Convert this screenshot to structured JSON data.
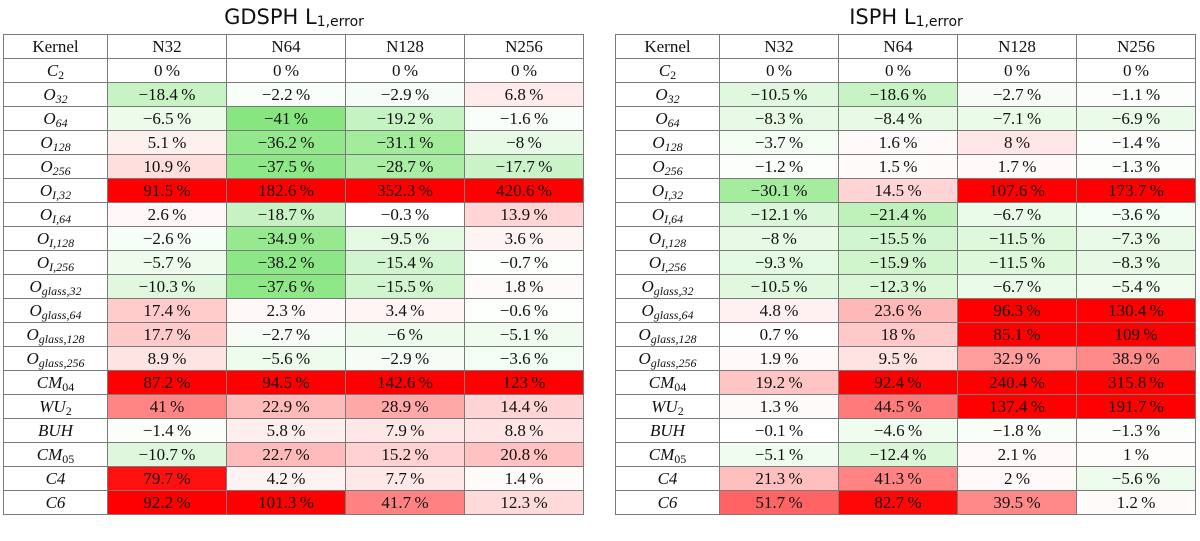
{
  "chart_data": [
    {
      "type": "table",
      "title": "GDSPH",
      "title_subscript": "1,error",
      "title_prefix": "L",
      "header": [
        "Kernel",
        "N32",
        "N64",
        "N128",
        "N256"
      ],
      "unit": "%",
      "rows": [
        {
          "kernel": {
            "b": "C",
            "s": "",
            "n": "2"
          },
          "values": [
            0,
            0,
            0,
            0
          ]
        },
        {
          "kernel": {
            "b": "O",
            "s": "32",
            "n": ""
          },
          "values": [
            -18.4,
            -2.2,
            -2.9,
            6.8
          ]
        },
        {
          "kernel": {
            "b": "O",
            "s": "64",
            "n": ""
          },
          "values": [
            -6.5,
            -41,
            -19.2,
            -1.6
          ]
        },
        {
          "kernel": {
            "b": "O",
            "s": "128",
            "n": ""
          },
          "values": [
            5.1,
            -36.2,
            -31.1,
            -8
          ]
        },
        {
          "kernel": {
            "b": "O",
            "s": "256",
            "n": ""
          },
          "values": [
            10.9,
            -37.5,
            -28.7,
            -17.7
          ]
        },
        {
          "kernel": {
            "b": "O",
            "s": "I,32",
            "n": ""
          },
          "values": [
            91.5,
            182.6,
            352.3,
            420.6
          ]
        },
        {
          "kernel": {
            "b": "O",
            "s": "I,64",
            "n": ""
          },
          "values": [
            2.6,
            -18.7,
            -0.3,
            13.9
          ]
        },
        {
          "kernel": {
            "b": "O",
            "s": "I,128",
            "n": ""
          },
          "values": [
            -2.6,
            -34.9,
            -9.5,
            3.6
          ]
        },
        {
          "kernel": {
            "b": "O",
            "s": "I,256",
            "n": ""
          },
          "values": [
            -5.7,
            -38.2,
            -15.4,
            -0.7
          ]
        },
        {
          "kernel": {
            "b": "O",
            "s": "glass,32",
            "n": ""
          },
          "values": [
            -10.3,
            -37.6,
            -15.5,
            1.8
          ]
        },
        {
          "kernel": {
            "b": "O",
            "s": "glass,64",
            "n": ""
          },
          "values": [
            17.4,
            2.3,
            3.4,
            -0.6
          ]
        },
        {
          "kernel": {
            "b": "O",
            "s": "glass,128",
            "n": ""
          },
          "values": [
            17.7,
            -2.7,
            -6,
            -5.1
          ]
        },
        {
          "kernel": {
            "b": "O",
            "s": "glass,256",
            "n": ""
          },
          "values": [
            8.9,
            -5.6,
            -2.9,
            -3.6
          ]
        },
        {
          "kernel": {
            "b": "CM",
            "s": "",
            "n": "04"
          },
          "values": [
            87.2,
            94.5,
            142.6,
            123
          ]
        },
        {
          "kernel": {
            "b": "WU",
            "s": "",
            "n": "2"
          },
          "values": [
            41,
            22.9,
            28.9,
            14.4
          ]
        },
        {
          "kernel": {
            "b": "BUH",
            "s": "",
            "n": ""
          },
          "values": [
            -1.4,
            5.8,
            7.9,
            8.8
          ]
        },
        {
          "kernel": {
            "b": "CM",
            "s": "",
            "n": "05"
          },
          "values": [
            -10.7,
            22.7,
            15.2,
            20.8
          ]
        },
        {
          "kernel": {
            "b": "C4",
            "s": "",
            "n": ""
          },
          "values": [
            79.7,
            4.2,
            7.7,
            1.4
          ]
        },
        {
          "kernel": {
            "b": "C6",
            "s": "",
            "n": ""
          },
          "values": [
            92.2,
            101.3,
            41.7,
            12.3
          ]
        }
      ]
    },
    {
      "type": "table",
      "title": "ISPH",
      "title_subscript": "1,error",
      "title_prefix": "L",
      "header": [
        "Kernel",
        "N32",
        "N64",
        "N128",
        "N256"
      ],
      "unit": "%",
      "rows": [
        {
          "kernel": {
            "b": "C",
            "s": "",
            "n": "2"
          },
          "values": [
            0,
            0,
            0,
            0
          ]
        },
        {
          "kernel": {
            "b": "O",
            "s": "32",
            "n": ""
          },
          "values": [
            -10.5,
            -18.6,
            -2.7,
            -1.1
          ]
        },
        {
          "kernel": {
            "b": "O",
            "s": "64",
            "n": ""
          },
          "values": [
            -8.3,
            -8.4,
            -7.1,
            -6.9
          ]
        },
        {
          "kernel": {
            "b": "O",
            "s": "128",
            "n": ""
          },
          "values": [
            -3.7,
            1.6,
            8,
            -1.4
          ]
        },
        {
          "kernel": {
            "b": "O",
            "s": "256",
            "n": ""
          },
          "values": [
            -1.2,
            1.5,
            1.7,
            -1.3
          ]
        },
        {
          "kernel": {
            "b": "O",
            "s": "I,32",
            "n": ""
          },
          "values": [
            -30.1,
            14.5,
            107.6,
            173.7
          ]
        },
        {
          "kernel": {
            "b": "O",
            "s": "I,64",
            "n": ""
          },
          "values": [
            -12.1,
            -21.4,
            -6.7,
            -3.6
          ]
        },
        {
          "kernel": {
            "b": "O",
            "s": "I,128",
            "n": ""
          },
          "values": [
            -8,
            -15.5,
            -11.5,
            -7.3
          ]
        },
        {
          "kernel": {
            "b": "O",
            "s": "I,256",
            "n": ""
          },
          "values": [
            -9.3,
            -15.9,
            -11.5,
            -8.3
          ]
        },
        {
          "kernel": {
            "b": "O",
            "s": "glass,32",
            "n": ""
          },
          "values": [
            -10.5,
            -12.3,
            -6.7,
            -5.4
          ]
        },
        {
          "kernel": {
            "b": "O",
            "s": "glass,64",
            "n": ""
          },
          "values": [
            4.8,
            23.6,
            96.3,
            130.4
          ]
        },
        {
          "kernel": {
            "b": "O",
            "s": "glass,128",
            "n": ""
          },
          "values": [
            0.7,
            18,
            85.1,
            109
          ]
        },
        {
          "kernel": {
            "b": "O",
            "s": "glass,256",
            "n": ""
          },
          "values": [
            1.9,
            9.5,
            32.9,
            38.9
          ]
        },
        {
          "kernel": {
            "b": "CM",
            "s": "",
            "n": "04"
          },
          "values": [
            19.2,
            92.4,
            240.4,
            315.8
          ]
        },
        {
          "kernel": {
            "b": "WU",
            "s": "",
            "n": "2"
          },
          "values": [
            1.3,
            44.5,
            137.4,
            191.7
          ]
        },
        {
          "kernel": {
            "b": "BUH",
            "s": "",
            "n": ""
          },
          "values": [
            -0.1,
            -4.6,
            -1.8,
            -1.3
          ]
        },
        {
          "kernel": {
            "b": "CM",
            "s": "",
            "n": "05"
          },
          "values": [
            -5.1,
            -12.4,
            2.1,
            1
          ]
        },
        {
          "kernel": {
            "b": "C4",
            "s": "",
            "n": ""
          },
          "values": [
            21.3,
            41.3,
            2,
            -5.6
          ]
        },
        {
          "kernel": {
            "b": "C6",
            "s": "",
            "n": ""
          },
          "values": [
            51.7,
            82.7,
            39.5,
            1.2
          ]
        }
      ]
    }
  ],
  "colors": {
    "positive_max": "#ff0000",
    "negative_max": "#88e680",
    "neutral": "#ffffff",
    "border": "#7a7a7a",
    "positive_saturation_at": 85,
    "negative_saturation_at": 40
  }
}
